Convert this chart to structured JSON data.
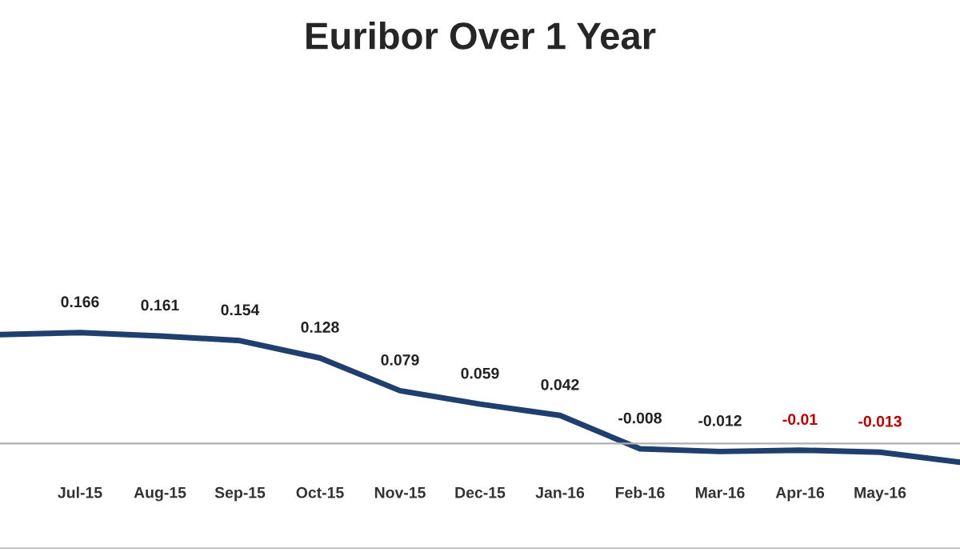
{
  "chart_data": {
    "type": "line",
    "title": "Euribor Over 1 Year",
    "categories": [
      null,
      "Jul-15",
      "Aug-15",
      "Sep-15",
      "Oct-15",
      "Nov-15",
      "Dec-15",
      "Jan-16",
      "Feb-16",
      "Mar-16",
      "Apr-16",
      "May-16",
      null
    ],
    "series": [
      {
        "color": "#1f3f6e",
        "values": [
          0.163,
          0.166,
          0.161,
          0.154,
          0.128,
          0.079,
          0.059,
          0.042,
          -0.008,
          -0.012,
          -0.01,
          -0.013,
          -0.028
        ],
        "value_labels": [
          null,
          "0.166",
          "0.161",
          "0.154",
          "0.128",
          "0.079",
          "0.059",
          "0.042",
          "-0.008",
          "-0.012",
          "-0.01",
          "-0.013",
          null
        ]
      }
    ],
    "tick_labels": "x",
    "grid": false,
    "line_style": "solid",
    "marker": "none"
  }
}
